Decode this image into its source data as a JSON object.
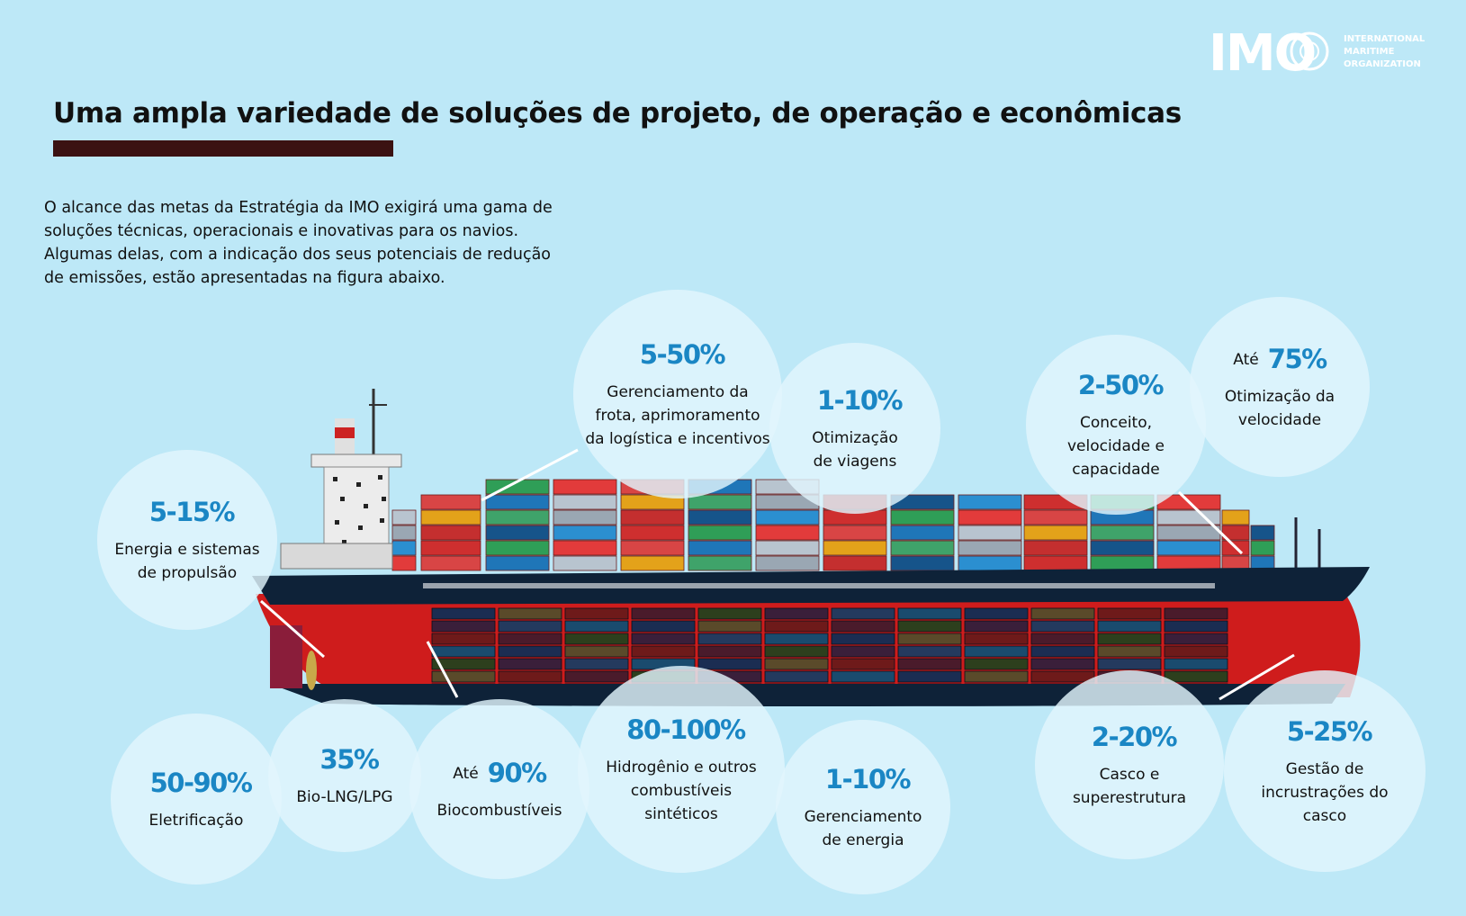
{
  "title": "Uma ampla variedade de soluções de projeto, de operação e econômicas",
  "intro": {
    "lines": [
      "O alcance das metas da Estratégia da IMO exigirá uma gama de",
      "soluções técnicas, operacionais e inovativas para os navios.",
      "Algumas delas, com a indicação dos seus potenciais de redução",
      "de emissões, estão apresentadas na figura abaixo."
    ]
  },
  "logo": {
    "mark": "IMO",
    "lines": [
      "INTERNATIONAL",
      "MARITIME",
      "ORGANIZATION"
    ]
  },
  "colors": {
    "background": "#bde8f7",
    "accent": "#1a86c4",
    "title_bar": "#3b1212",
    "hull_red": "#cf1c1c",
    "hull_navy": "#0e2238"
  },
  "solutions": [
    {
      "id": "fleet",
      "prefix": "",
      "value": "5-50%",
      "label": [
        "Gerenciamento da",
        "frota, aprimoramento",
        "da logística e incentivos"
      ]
    },
    {
      "id": "voyage",
      "prefix": "",
      "value": "1-10%",
      "label": [
        "Otimização",
        "de viagens"
      ]
    },
    {
      "id": "concept",
      "prefix": "",
      "value": "2-50%",
      "label": [
        "Conceito,",
        "velocidade e",
        "capacidade"
      ]
    },
    {
      "id": "speed",
      "prefix": "Até",
      "value": "75%",
      "label": [
        "Otimização da",
        "velocidade"
      ]
    },
    {
      "id": "propulsion",
      "prefix": "",
      "value": "5-15%",
      "label": [
        "Energia e sistemas",
        "de propulsão"
      ]
    },
    {
      "id": "electrification",
      "prefix": "",
      "value": "50-90%",
      "label": [
        "Eletrificação"
      ]
    },
    {
      "id": "biolng",
      "prefix": "",
      "value": "35%",
      "label": [
        "Bio-LNG/LPG"
      ]
    },
    {
      "id": "biofuels",
      "prefix": "Até",
      "value": "90%",
      "label": [
        "Biocombustíveis"
      ]
    },
    {
      "id": "hydrogen",
      "prefix": "",
      "value": "80-100%",
      "label": [
        "Hidrogênio e outros",
        "combustíveis",
        "sintéticos"
      ]
    },
    {
      "id": "energy",
      "prefix": "",
      "value": "1-10%",
      "label": [
        "Gerenciamento",
        "de energia"
      ]
    },
    {
      "id": "hull",
      "prefix": "",
      "value": "2-20%",
      "label": [
        "Casco e",
        "superestrutura"
      ]
    },
    {
      "id": "fouling",
      "prefix": "",
      "value": "5-25%",
      "label": [
        "Gestão de",
        "incrustrações do",
        "casco"
      ]
    }
  ]
}
